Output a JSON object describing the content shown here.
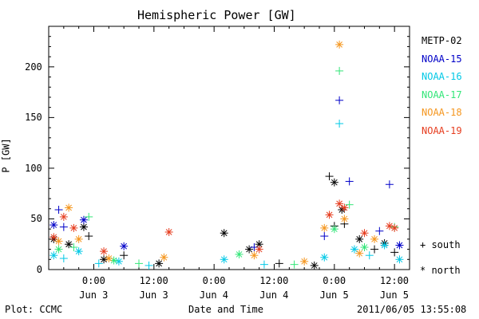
{
  "chart_data": {
    "type": "scatter",
    "title": "Hemispheric Power [GW]",
    "ylabel": "P [GW]",
    "xlabel": "Date and Time",
    "ylim": [
      0,
      240
    ],
    "xlim": [
      "2011-06-02 15:00",
      "2011-06-05 15:00"
    ],
    "yticks": [
      0,
      50,
      100,
      150,
      200
    ],
    "xticks": [
      {
        "x": "2011-06-03 00:00",
        "time": "0:00",
        "date": "Jun 3"
      },
      {
        "x": "2011-06-03 12:00",
        "time": "12:00",
        "date": "Jun 3"
      },
      {
        "x": "2011-06-04 00:00",
        "time": "0:00",
        "date": "Jun 4"
      },
      {
        "x": "2011-06-04 12:00",
        "time": "12:00",
        "date": "Jun 4"
      },
      {
        "x": "2011-06-05 00:00",
        "time": "0:00",
        "date": "Jun 5"
      },
      {
        "x": "2011-06-05 12:00",
        "time": "12:00",
        "date": "Jun 5"
      }
    ],
    "marker_legend": [
      {
        "symbol": "+",
        "label": "south"
      },
      {
        "symbol": "*",
        "label": "north"
      }
    ],
    "series": [
      {
        "name": "METP-02",
        "color": "#000000",
        "points": [
          [
            "2011-06-02 16:00",
            30,
            "*"
          ],
          [
            "2011-06-02 19:00",
            25,
            "*"
          ],
          [
            "2011-06-02 22:00",
            42,
            "*"
          ],
          [
            "2011-06-02 23:00",
            33,
            "+"
          ],
          [
            "2011-06-03 02:00",
            10,
            "*"
          ],
          [
            "2011-06-03 06:00",
            14,
            "+"
          ],
          [
            "2011-06-03 13:00",
            6,
            "*"
          ],
          [
            "2011-06-04 02:00",
            36,
            "*"
          ],
          [
            "2011-06-04 07:00",
            20,
            "*"
          ],
          [
            "2011-06-04 09:00",
            25,
            "*"
          ],
          [
            "2011-06-04 13:00",
            6,
            "+"
          ],
          [
            "2011-06-04 20:00",
            4,
            "*"
          ],
          [
            "2011-06-04 23:00",
            92,
            "+"
          ],
          [
            "2011-06-05 00:00",
            86,
            "*"
          ],
          [
            "2011-06-05 00:00",
            43,
            "+"
          ],
          [
            "2011-06-05 01:30",
            59,
            "*"
          ],
          [
            "2011-06-05 02:00",
            45,
            "+"
          ],
          [
            "2011-06-05 05:00",
            30,
            "*"
          ],
          [
            "2011-06-05 08:00",
            20,
            "+"
          ],
          [
            "2011-06-05 10:00",
            26,
            "*"
          ],
          [
            "2011-06-05 12:00",
            17,
            "+"
          ]
        ]
      },
      {
        "name": "NOAA-15",
        "color": "#0000c8",
        "points": [
          [
            "2011-06-02 16:00",
            44,
            "*"
          ],
          [
            "2011-06-02 17:00",
            59,
            "+"
          ],
          [
            "2011-06-02 18:00",
            42,
            "+"
          ],
          [
            "2011-06-02 22:00",
            49,
            "*"
          ],
          [
            "2011-06-03 06:00",
            23,
            "*"
          ],
          [
            "2011-06-04 08:00",
            22,
            "+"
          ],
          [
            "2011-06-04 22:00",
            33,
            "+"
          ],
          [
            "2011-06-05 01:00",
            167,
            "+"
          ],
          [
            "2011-06-05 03:00",
            87,
            "+"
          ],
          [
            "2011-06-05 09:00",
            38,
            "+"
          ],
          [
            "2011-06-05 11:00",
            84,
            "+"
          ],
          [
            "2011-06-05 13:00",
            24,
            "*"
          ]
        ]
      },
      {
        "name": "NOAA-16",
        "color": "#00c8e6",
        "points": [
          [
            "2011-06-02 16:00",
            14,
            "*"
          ],
          [
            "2011-06-02 18:00",
            11,
            "+"
          ],
          [
            "2011-06-02 21:00",
            18,
            "*"
          ],
          [
            "2011-06-03 01:00",
            6,
            "+"
          ],
          [
            "2011-06-03 05:00",
            8,
            "*"
          ],
          [
            "2011-06-03 11:00",
            4,
            "+"
          ],
          [
            "2011-06-04 02:00",
            10,
            "*"
          ],
          [
            "2011-06-04 10:00",
            5,
            "+"
          ],
          [
            "2011-06-04 22:00",
            12,
            "*"
          ],
          [
            "2011-06-05 01:00",
            144,
            "+"
          ],
          [
            "2011-06-05 04:00",
            20,
            "*"
          ],
          [
            "2011-06-05 07:00",
            14,
            "+"
          ],
          [
            "2011-06-05 10:00",
            24,
            "*"
          ],
          [
            "2011-06-05 13:00",
            10,
            "*"
          ]
        ]
      },
      {
        "name": "NOAA-17",
        "color": "#32e678",
        "points": [
          [
            "2011-06-02 17:00",
            20,
            "*"
          ],
          [
            "2011-06-02 20:00",
            22,
            "+"
          ],
          [
            "2011-06-02 23:00",
            52,
            "+"
          ],
          [
            "2011-06-03 04:00",
            9,
            "*"
          ],
          [
            "2011-06-03 09:00",
            6,
            "+"
          ],
          [
            "2011-06-04 05:00",
            15,
            "*"
          ],
          [
            "2011-06-04 16:00",
            5,
            "+"
          ],
          [
            "2011-06-05 00:00",
            40,
            "*"
          ],
          [
            "2011-06-05 01:00",
            196,
            "+"
          ],
          [
            "2011-06-05 03:00",
            64,
            "+"
          ],
          [
            "2011-06-05 06:00",
            22,
            "*"
          ],
          [
            "2011-06-05 12:00",
            42,
            "+"
          ]
        ]
      },
      {
        "name": "NOAA-18",
        "color": "#f5961e",
        "points": [
          [
            "2011-06-02 17:00",
            28,
            "*"
          ],
          [
            "2011-06-02 19:00",
            61,
            "*"
          ],
          [
            "2011-06-02 21:00",
            30,
            "*"
          ],
          [
            "2011-06-03 03:00",
            11,
            "*"
          ],
          [
            "2011-06-03 14:00",
            12,
            "*"
          ],
          [
            "2011-06-04 08:00",
            14,
            "*"
          ],
          [
            "2011-06-04 18:00",
            8,
            "*"
          ],
          [
            "2011-06-04 22:00",
            41,
            "*"
          ],
          [
            "2011-06-05 01:00",
            222,
            "*"
          ],
          [
            "2011-06-05 02:00",
            50,
            "*"
          ],
          [
            "2011-06-05 05:00",
            16,
            "*"
          ],
          [
            "2011-06-05 08:00",
            30,
            "*"
          ]
        ]
      },
      {
        "name": "NOAA-19",
        "color": "#e63c1e",
        "points": [
          [
            "2011-06-02 16:00",
            32,
            "*"
          ],
          [
            "2011-06-02 18:00",
            52,
            "*"
          ],
          [
            "2011-06-02 20:00",
            41,
            "*"
          ],
          [
            "2011-06-03 02:00",
            18,
            "*"
          ],
          [
            "2011-06-03 15:00",
            37,
            "*"
          ],
          [
            "2011-06-04 09:00",
            20,
            "*"
          ],
          [
            "2011-06-04 23:00",
            54,
            "*"
          ],
          [
            "2011-06-05 01:00",
            65,
            "*"
          ],
          [
            "2011-06-05 02:00",
            61,
            "*"
          ],
          [
            "2011-06-05 06:00",
            36,
            "*"
          ],
          [
            "2011-06-05 11:00",
            43,
            "*"
          ],
          [
            "2011-06-05 12:00",
            41,
            "*"
          ]
        ]
      }
    ]
  },
  "footer": {
    "left": "Plot: CCMC",
    "right": "2011/06/05 13:55:08"
  }
}
